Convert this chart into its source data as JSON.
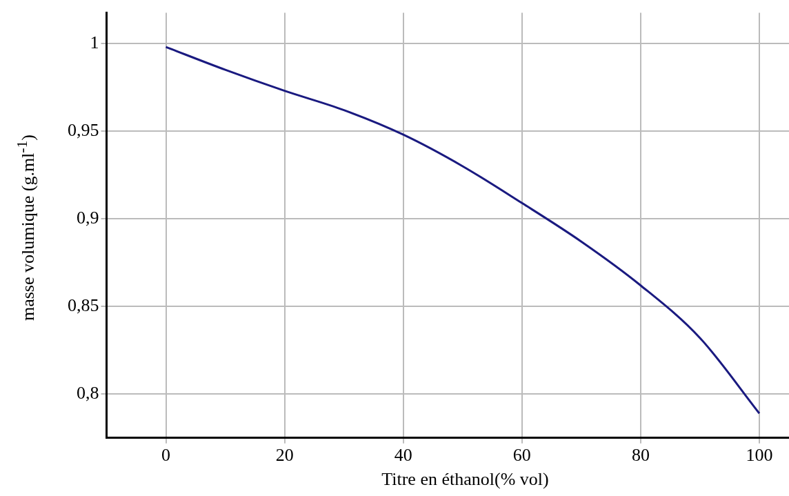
{
  "chart_data": {
    "type": "line",
    "xlabel": "Titre en éthanol(% vol)",
    "ylabel": "masse volumique (g.ml$^{-1}$)",
    "x": [
      0,
      10,
      20,
      30,
      40,
      50,
      60,
      70,
      80,
      90,
      100
    ],
    "series": [
      {
        "color": "#1a1a80",
        "values": [
          0.998,
          0.985,
          0.973,
          0.962,
          0.948,
          0.93,
          0.909,
          0.887,
          0.862,
          0.832,
          0.789
        ]
      }
    ],
    "xlim": [
      -10,
      105
    ],
    "xticks": [
      0,
      20,
      40,
      60,
      80,
      100
    ],
    "ylim": [
      0.775,
      1.0175
    ],
    "yticks": [
      {
        "value": 0.8,
        "label": "0,8"
      },
      {
        "value": 0.85,
        "label": "0,85"
      },
      {
        "value": 0.9,
        "label": "0,9"
      },
      {
        "value": 0.95,
        "label": "0,95"
      },
      1
    ],
    "grid": true,
    "legend": false,
    "marker": "none",
    "line_style": "solid"
  }
}
